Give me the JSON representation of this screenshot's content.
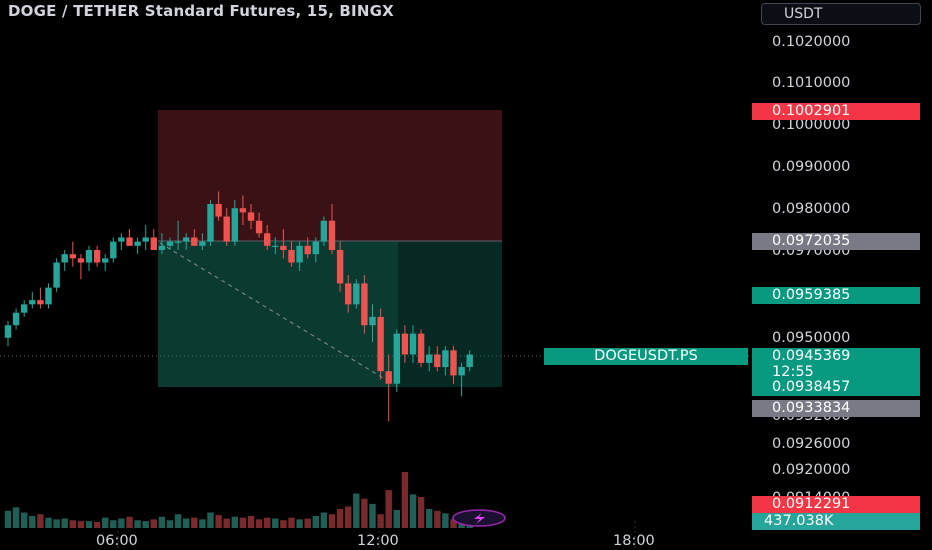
{
  "header": {
    "title": "DOGE / TETHER Standard Futures, 15, BINGX",
    "currency_button": "USDT"
  },
  "colors": {
    "up": "#26a69a",
    "down": "#ef5350",
    "accent_green": "#089981",
    "tag_red": "#f23645",
    "tag_gray": "#787b86",
    "stop_zone": "#3a1215",
    "target_zone": "#0a3a30"
  },
  "price_axis": {
    "labels": [
      "0.1020000",
      "0.1010000",
      "0.1000000",
      "0.0990000",
      "0.0980000",
      "0.0970000",
      "0.0950000",
      "0.0932000",
      "0.0926000",
      "0.0920000",
      "0.0914000"
    ]
  },
  "price_tags": {
    "stop_loss": "0.1002901",
    "entry": "0.0972035",
    "entry_mid": "0.0959385",
    "last_price": "0.0945369",
    "countdown": "12:55",
    "target": "0.0938457",
    "low_marker": "0.0933834",
    "volume_low": "0.0912291",
    "volume": "437.038K"
  },
  "symbol_tag": "DOGEUSDT.PS",
  "time_axis": {
    "labels": [
      "06:00",
      "12:00",
      "18:00"
    ]
  },
  "chart_data": {
    "type": "candlestick",
    "title": "DOGE / TETHER Standard Futures, 15, BINGX",
    "interval": "15",
    "price_axis_range": [
      0.0911,
      0.1023
    ],
    "time_labels": [
      "06:00",
      "12:00",
      "18:00"
    ],
    "ohlc": [
      [
        0.0949,
        0.0953,
        0.0947,
        0.0952
      ],
      [
        0.0952,
        0.0956,
        0.0951,
        0.0955
      ],
      [
        0.0955,
        0.0958,
        0.0954,
        0.0957
      ],
      [
        0.0957,
        0.096,
        0.0956,
        0.0958
      ],
      [
        0.0958,
        0.0961,
        0.0956,
        0.0957
      ],
      [
        0.0957,
        0.0962,
        0.0956,
        0.0961
      ],
      [
        0.0961,
        0.0968,
        0.096,
        0.0967
      ],
      [
        0.0967,
        0.097,
        0.0965,
        0.0969
      ],
      [
        0.0969,
        0.0972,
        0.0966,
        0.0968
      ],
      [
        0.0968,
        0.0969,
        0.0963,
        0.0967
      ],
      [
        0.0967,
        0.0971,
        0.0965,
        0.097
      ],
      [
        0.097,
        0.0971,
        0.0966,
        0.0967
      ],
      [
        0.0967,
        0.0969,
        0.0965,
        0.0968
      ],
      [
        0.0968,
        0.0973,
        0.0967,
        0.0972
      ],
      [
        0.0972,
        0.0974,
        0.097,
        0.0973
      ],
      [
        0.0973,
        0.0975,
        0.0971,
        0.0971
      ],
      [
        0.0971,
        0.0973,
        0.0969,
        0.0972
      ],
      [
        0.0972,
        0.0976,
        0.097,
        0.0973
      ],
      [
        0.0973,
        0.0975,
        0.097,
        0.097
      ],
      [
        0.097,
        0.0974,
        0.0969,
        0.0971
      ],
      [
        0.0971,
        0.0973,
        0.097,
        0.0972
      ],
      [
        0.0972,
        0.0977,
        0.097,
        0.0972
      ],
      [
        0.0972,
        0.0974,
        0.097,
        0.0973
      ],
      [
        0.0973,
        0.0975,
        0.0971,
        0.0971
      ],
      [
        0.0971,
        0.0974,
        0.097,
        0.0972
      ],
      [
        0.0972,
        0.0982,
        0.0971,
        0.0981
      ],
      [
        0.0981,
        0.0984,
        0.0977,
        0.0978
      ],
      [
        0.0978,
        0.098,
        0.0971,
        0.0972
      ],
      [
        0.0972,
        0.0982,
        0.0971,
        0.098
      ],
      [
        0.098,
        0.0983,
        0.0976,
        0.0979
      ],
      [
        0.0979,
        0.0981,
        0.0975,
        0.0977
      ],
      [
        0.0977,
        0.0979,
        0.0973,
        0.0974
      ],
      [
        0.0974,
        0.0976,
        0.097,
        0.0971
      ],
      [
        0.0971,
        0.0973,
        0.0969,
        0.0971
      ],
      [
        0.0971,
        0.0975,
        0.0968,
        0.097
      ],
      [
        0.097,
        0.0972,
        0.0966,
        0.0967
      ],
      [
        0.0967,
        0.0972,
        0.0965,
        0.0971
      ],
      [
        0.0971,
        0.0973,
        0.0968,
        0.0969
      ],
      [
        0.0969,
        0.0973,
        0.0967,
        0.0972
      ],
      [
        0.0972,
        0.0978,
        0.0971,
        0.0977
      ],
      [
        0.0977,
        0.0981,
        0.0969,
        0.097
      ],
      [
        0.097,
        0.0972,
        0.096,
        0.0962
      ],
      [
        0.0962,
        0.0964,
        0.0955,
        0.0957
      ],
      [
        0.0957,
        0.0963,
        0.0956,
        0.0962
      ],
      [
        0.0962,
        0.0964,
        0.095,
        0.0952
      ],
      [
        0.0952,
        0.0957,
        0.0948,
        0.0954
      ],
      [
        0.0954,
        0.0956,
        0.0939,
        0.0941
      ],
      [
        0.0941,
        0.0945,
        0.0929,
        0.0938
      ],
      [
        0.0938,
        0.0951,
        0.0936,
        0.095
      ],
      [
        0.095,
        0.0952,
        0.0943,
        0.0945
      ],
      [
        0.0945,
        0.0952,
        0.0943,
        0.095
      ],
      [
        0.095,
        0.0951,
        0.0942,
        0.0943
      ],
      [
        0.0943,
        0.0947,
        0.0941,
        0.0945
      ],
      [
        0.0945,
        0.0947,
        0.0941,
        0.0942
      ],
      [
        0.0942,
        0.0947,
        0.094,
        0.0946
      ],
      [
        0.0946,
        0.0947,
        0.0938,
        0.094
      ],
      [
        0.094,
        0.0943,
        0.0935,
        0.0942
      ],
      [
        0.0942,
        0.0946,
        0.0941,
        0.0945
      ]
    ],
    "volume": [
      20,
      24,
      18,
      14,
      16,
      12,
      10,
      11,
      9,
      8,
      8,
      7,
      12,
      9,
      11,
      13,
      9,
      8,
      10,
      13,
      9,
      16,
      11,
      12,
      10,
      18,
      15,
      11,
      13,
      12,
      14,
      10,
      12,
      11,
      9,
      12,
      10,
      11,
      14,
      18,
      16,
      22,
      25,
      40,
      34,
      28,
      16,
      44,
      21,
      65,
      39,
      36,
      22,
      20,
      17,
      10,
      14,
      11
    ]
  }
}
